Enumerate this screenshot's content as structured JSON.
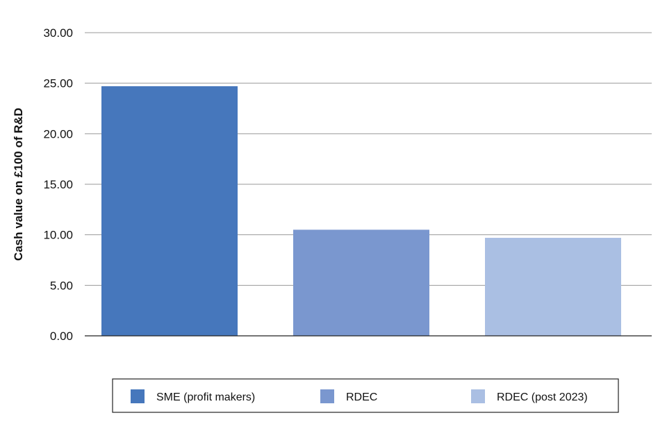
{
  "chart_data": {
    "type": "bar",
    "title": "",
    "xlabel": "",
    "ylabel": "Cash value on £100 of R&D",
    "ylim": [
      0,
      30
    ],
    "yticks": [
      "0.00",
      "5.00",
      "10.00",
      "15.00",
      "20.00",
      "25.00",
      "30.00"
    ],
    "grid": true,
    "legend_position": "bottom",
    "series": [
      {
        "name": "SME (profit makers)",
        "values": [
          24.7
        ],
        "color": "#4677BC"
      },
      {
        "name": "RDEC",
        "values": [
          10.5
        ],
        "color": "#7A97CF"
      },
      {
        "name": "RDEC (post 2023)",
        "values": [
          9.7
        ],
        "color": "#AABFE3"
      }
    ]
  }
}
